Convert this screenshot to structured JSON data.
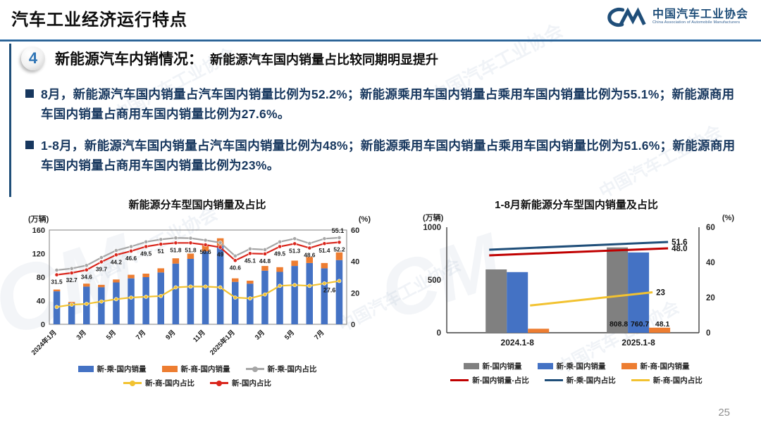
{
  "header": {
    "title": "汽车工业经济运行特点",
    "logo": {
      "name": "中国汽车工业协会",
      "subtitle": "China Association of Automobile Manufacturers"
    }
  },
  "section": {
    "number": "4",
    "heading": "新能源汽车内销情况：",
    "subheading": "新能源汽车国内销量占比较同期明显提升"
  },
  "bullets": [
    "8月，新能源汽车国内销量占汽车国内销量比例为52.2%；新能源乘用车国内销量占乘用车国内销量比例为55.1%；新能源商用车国内销量占商用车国内销量比例为27.6%。",
    "1-8月，新能源汽车国内销量占汽车国内销量比例为48%；新能源乘用车国内销量占乘用车国内销量比例为51.6%；新能源商用车国内销量占商用车国内销量比例为23%。"
  ],
  "page_number": "25",
  "watermark_text": "中国汽车工业协会",
  "watermark_logo_text": "CM",
  "colors": {
    "accent_blue": "#2E74B5",
    "navy_text": "#17375E",
    "bar_blue": "#4472C4",
    "bar_orange": "#ED7D31",
    "bar_gray": "#808080",
    "line_gray": "#A6A6A6",
    "line_yellow": "#F2C230",
    "line_red": "#D9261C",
    "line_navy": "#1F4E79"
  },
  "chart_data": [
    {
      "type": "bar",
      "subtype": "stacked-bars-with-percentage-lines",
      "title": "新能源分车型国内销量及占比",
      "left_axis_label": "(万辆)",
      "right_axis_label": "(%)",
      "left_ticks": [
        0,
        40,
        80,
        120,
        160
      ],
      "right_ticks": [
        0,
        20,
        40,
        60
      ],
      "left_ylim": [
        0,
        160
      ],
      "right_ylim": [
        0,
        60
      ],
      "categories": [
        "2024年1月",
        "2024年2月",
        "2024年3月",
        "2024年4月",
        "2024年5月",
        "2024年6月",
        "2024年7月",
        "2024年8月",
        "2024年9月",
        "2024年10月",
        "2024年11月",
        "2024年12月",
        "2025年1月",
        "2025年2月",
        "2025年3月",
        "2025年4月",
        "2025年5月",
        "2025年6月",
        "2025年7月",
        "2025年8月"
      ],
      "x_tick_labels_shown": [
        "2024年1月",
        "3月",
        "5月",
        "7月",
        "9月",
        "11月",
        "2025年1月",
        "3月",
        "5月",
        "7月"
      ],
      "series": [
        {
          "name": "新-乘-国内销量",
          "kind": "bar",
          "axis": "left",
          "color": "#4472C4",
          "values": [
            56,
            36,
            64,
            63,
            71,
            78,
            80,
            88,
            103,
            111,
            124,
            133,
            72,
            69,
            91,
            89,
            99,
            104,
            95,
            109
          ]
        },
        {
          "name": "新-商-国内销量",
          "kind": "bar",
          "axis": "left",
          "stack_on_previous": true,
          "color": "#ED7D31",
          "values": [
            3,
            2,
            5,
            4,
            5,
            6,
            6,
            7,
            9,
            9,
            10,
            13,
            6,
            5,
            8,
            8,
            9,
            10,
            9,
            13
          ]
        },
        {
          "name": "新-乘-国内占比",
          "kind": "line",
          "axis": "right",
          "color": "#A6A6A6",
          "values": [
            34.5,
            35.5,
            37.5,
            42.5,
            47,
            49.5,
            52.5,
            54,
            55,
            54.8,
            53.5,
            52,
            43.5,
            48,
            47.5,
            52.5,
            54.5,
            51.5,
            54.5,
            55.1
          ],
          "last_label": "55.1"
        },
        {
          "name": "新-商-国内占比",
          "kind": "line",
          "axis": "right",
          "color": "#F2C230",
          "values": [
            11,
            12.5,
            13,
            14.5,
            16,
            17,
            17.5,
            18,
            23.5,
            24,
            24,
            23.5,
            17,
            16.5,
            19,
            24.5,
            25,
            24.5,
            26,
            27.6
          ],
          "last_label": "27.6"
        },
        {
          "name": "新-国内占比",
          "kind": "line",
          "axis": "right",
          "color": "#D9261C",
          "values": [
            31.5,
            32.7,
            34.6,
            39.7,
            44.2,
            46.6,
            49.5,
            51,
            51.8,
            51.8,
            50.6,
            49,
            40.6,
            45.1,
            44.8,
            49.5,
            51.3,
            48.6,
            51.4,
            52.2
          ],
          "label_all_points": true
        }
      ],
      "legend_rows": [
        [
          {
            "label": "新-乘-国内销量",
            "swatch": "bar",
            "color": "#4472C4"
          },
          {
            "label": "新-商-国内销量",
            "swatch": "bar",
            "color": "#ED7D31"
          },
          {
            "label": "新-乘-国内占比",
            "swatch": "line-marker",
            "color": "#A6A6A6"
          }
        ],
        [
          {
            "label": "新-商-国内占比",
            "swatch": "line-marker",
            "color": "#F2C230"
          },
          {
            "label": "新-国内占比",
            "swatch": "line-marker",
            "color": "#D9261C"
          }
        ]
      ]
    },
    {
      "type": "bar",
      "subtype": "grouped-bars-with-percentage-lines",
      "title": "1-8月新能源分车型国内销量及占比",
      "left_axis_label": "(万辆)",
      "right_axis_label": "(%)",
      "left_ticks": [
        0,
        500,
        1000
      ],
      "right_ticks": [
        0,
        20,
        40,
        60
      ],
      "left_ylim": [
        0,
        1000
      ],
      "right_ylim": [
        0,
        60
      ],
      "categories": [
        "2024.1-8",
        "2025.1-8"
      ],
      "bar_series": [
        {
          "name": "新-国内销量",
          "color": "#808080",
          "values": [
            600,
            808.8
          ],
          "labels": [
            "",
            "808.8"
          ]
        },
        {
          "name": "新-乘-国内销量",
          "color": "#4472C4",
          "values": [
            575,
            760.7
          ],
          "labels": [
            "",
            "760.7"
          ]
        },
        {
          "name": "新-商-国内销量",
          "color": "#ED7D31",
          "values": [
            38,
            48.1
          ],
          "labels": [
            "",
            "48.1"
          ]
        }
      ],
      "line_series": [
        {
          "name": "新-国内销量-占比",
          "color": "#C00000",
          "values": [
            44,
            48
          ],
          "end_label": "48.0"
        },
        {
          "name": "新-乘-国内占比",
          "color": "#1F4E79",
          "values": [
            47.2,
            51.6
          ],
          "end_label": "51.6"
        },
        {
          "name": "新-商-国内占比",
          "color": "#F2C230",
          "values": [
            15.5,
            23
          ],
          "end_label": "23"
        }
      ],
      "legend_rows": [
        [
          {
            "label": "新-国内销量",
            "swatch": "bar",
            "color": "#808080"
          },
          {
            "label": "新-乘-国内销量",
            "swatch": "bar",
            "color": "#4472C4"
          },
          {
            "label": "新-商-国内销量",
            "swatch": "bar",
            "color": "#ED7D31"
          }
        ],
        [
          {
            "label": "新-国内销量-占比",
            "swatch": "line",
            "color": "#C00000"
          },
          {
            "label": "新-乘-国内占比",
            "swatch": "line",
            "color": "#1F4E79"
          },
          {
            "label": "新-商-国内占比",
            "swatch": "line",
            "color": "#F2C230"
          }
        ]
      ]
    }
  ]
}
